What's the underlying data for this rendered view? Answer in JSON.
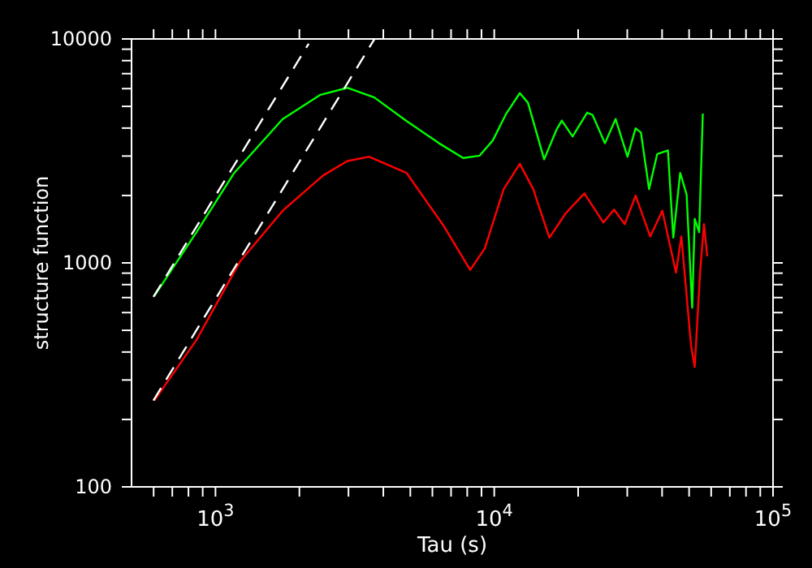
{
  "chart_data": {
    "type": "line",
    "xlabel": "Tau (s)",
    "ylabel": "structure function",
    "log": "xy",
    "grid": false,
    "marker": "none",
    "xlim": [
      500,
      100000
    ],
    "ylim": [
      100,
      10000
    ],
    "xticks": [
      {
        "value": 600,
        "label": null
      },
      {
        "value": 700,
        "label": null
      },
      {
        "value": 800,
        "label": null
      },
      {
        "value": 900,
        "label": null
      },
      {
        "value": 1000,
        "label": "10$^{3}$"
      },
      {
        "value": 2000,
        "label": null
      },
      {
        "value": 3000,
        "label": null
      },
      {
        "value": 4000,
        "label": null
      },
      {
        "value": 5000,
        "label": null
      },
      {
        "value": 6000,
        "label": null
      },
      {
        "value": 7000,
        "label": null
      },
      {
        "value": 8000,
        "label": null
      },
      {
        "value": 9000,
        "label": null
      },
      {
        "value": 10000,
        "label": "10$^{4}$"
      },
      {
        "value": 20000,
        "label": null
      },
      {
        "value": 30000,
        "label": null
      },
      {
        "value": 40000,
        "label": null
      },
      {
        "value": 50000,
        "label": null
      },
      {
        "value": 60000,
        "label": null
      },
      {
        "value": 70000,
        "label": null
      },
      {
        "value": 80000,
        "label": null
      },
      {
        "value": 90000,
        "label": null
      },
      {
        "value": 100000,
        "label": "10$^{5}$"
      }
    ],
    "yticks": [
      100,
      {
        "value": 200,
        "label": null
      },
      {
        "value": 300,
        "label": null
      },
      {
        "value": 400,
        "label": null
      },
      {
        "value": 500,
        "label": null
      },
      {
        "value": 600,
        "label": null
      },
      {
        "value": 700,
        "label": null
      },
      {
        "value": 800,
        "label": null
      },
      {
        "value": 900,
        "label": null
      },
      1000,
      {
        "value": 2000,
        "label": null
      },
      {
        "value": 3000,
        "label": null
      },
      {
        "value": 4000,
        "label": null
      },
      {
        "value": 5000,
        "label": null
      },
      {
        "value": 6000,
        "label": null
      },
      {
        "value": 7000,
        "label": null
      },
      {
        "value": 8000,
        "label": null
      },
      {
        "value": 9000,
        "label": null
      },
      10000
    ],
    "series": [
      {
        "color": "#00ff00",
        "line_style": "solid",
        "x": [
          604,
          855,
          1167,
          1742,
          2380,
          2970,
          3715,
          4850,
          6340,
          7740,
          8850,
          9880,
          11040,
          12350,
          13210,
          15100,
          16720,
          17470,
          19100,
          21540,
          22510,
          24950,
          27240,
          30060,
          32140,
          33590,
          35920,
          38410,
          41980,
          43870,
          46450,
          48980,
          51290,
          52370,
          54330,
          55990
        ],
        "values": [
          713,
          1371,
          2520,
          4390,
          5630,
          6050,
          5480,
          4300,
          3420,
          2940,
          3010,
          3520,
          4640,
          5730,
          5190,
          2900,
          3930,
          4320,
          3670,
          4690,
          4580,
          3420,
          4390,
          2980,
          3990,
          3820,
          2135,
          3060,
          3180,
          1296,
          2520,
          2020,
          631,
          1574,
          1371,
          4640
        ]
      },
      {
        "color": "#ff0000",
        "line_style": "solid",
        "x": [
          604,
          855,
          1222,
          1742,
          2430,
          2970,
          3555,
          4850,
          6620,
          8200,
          9250,
          10810,
          12350,
          13800,
          15770,
          18030,
          21050,
          24620,
          26900,
          29380,
          32140,
          36260,
          40090,
          44870,
          46900,
          50820,
          52370,
          54830,
          56540,
          58080
        ],
        "values": [
          243,
          453,
          1010,
          1710,
          2455,
          2850,
          2980,
          2520,
          1449,
          930,
          1161,
          2135,
          2770,
          2135,
          1296,
          1663,
          2043,
          1515,
          1730,
          1490,
          1997,
          1312,
          1710,
          905,
          1312,
          428,
          343,
          930,
          1490,
          1070
        ]
      },
      {
        "color": "#ffffff",
        "line_style": "dashed",
        "x": [
          599,
          2160
        ],
        "values": [
          705,
          9530
        ]
      },
      {
        "color": "#ffffff",
        "line_style": "dashed",
        "x": [
          599,
          3715
        ],
        "values": [
          243,
          9970
        ]
      }
    ]
  }
}
